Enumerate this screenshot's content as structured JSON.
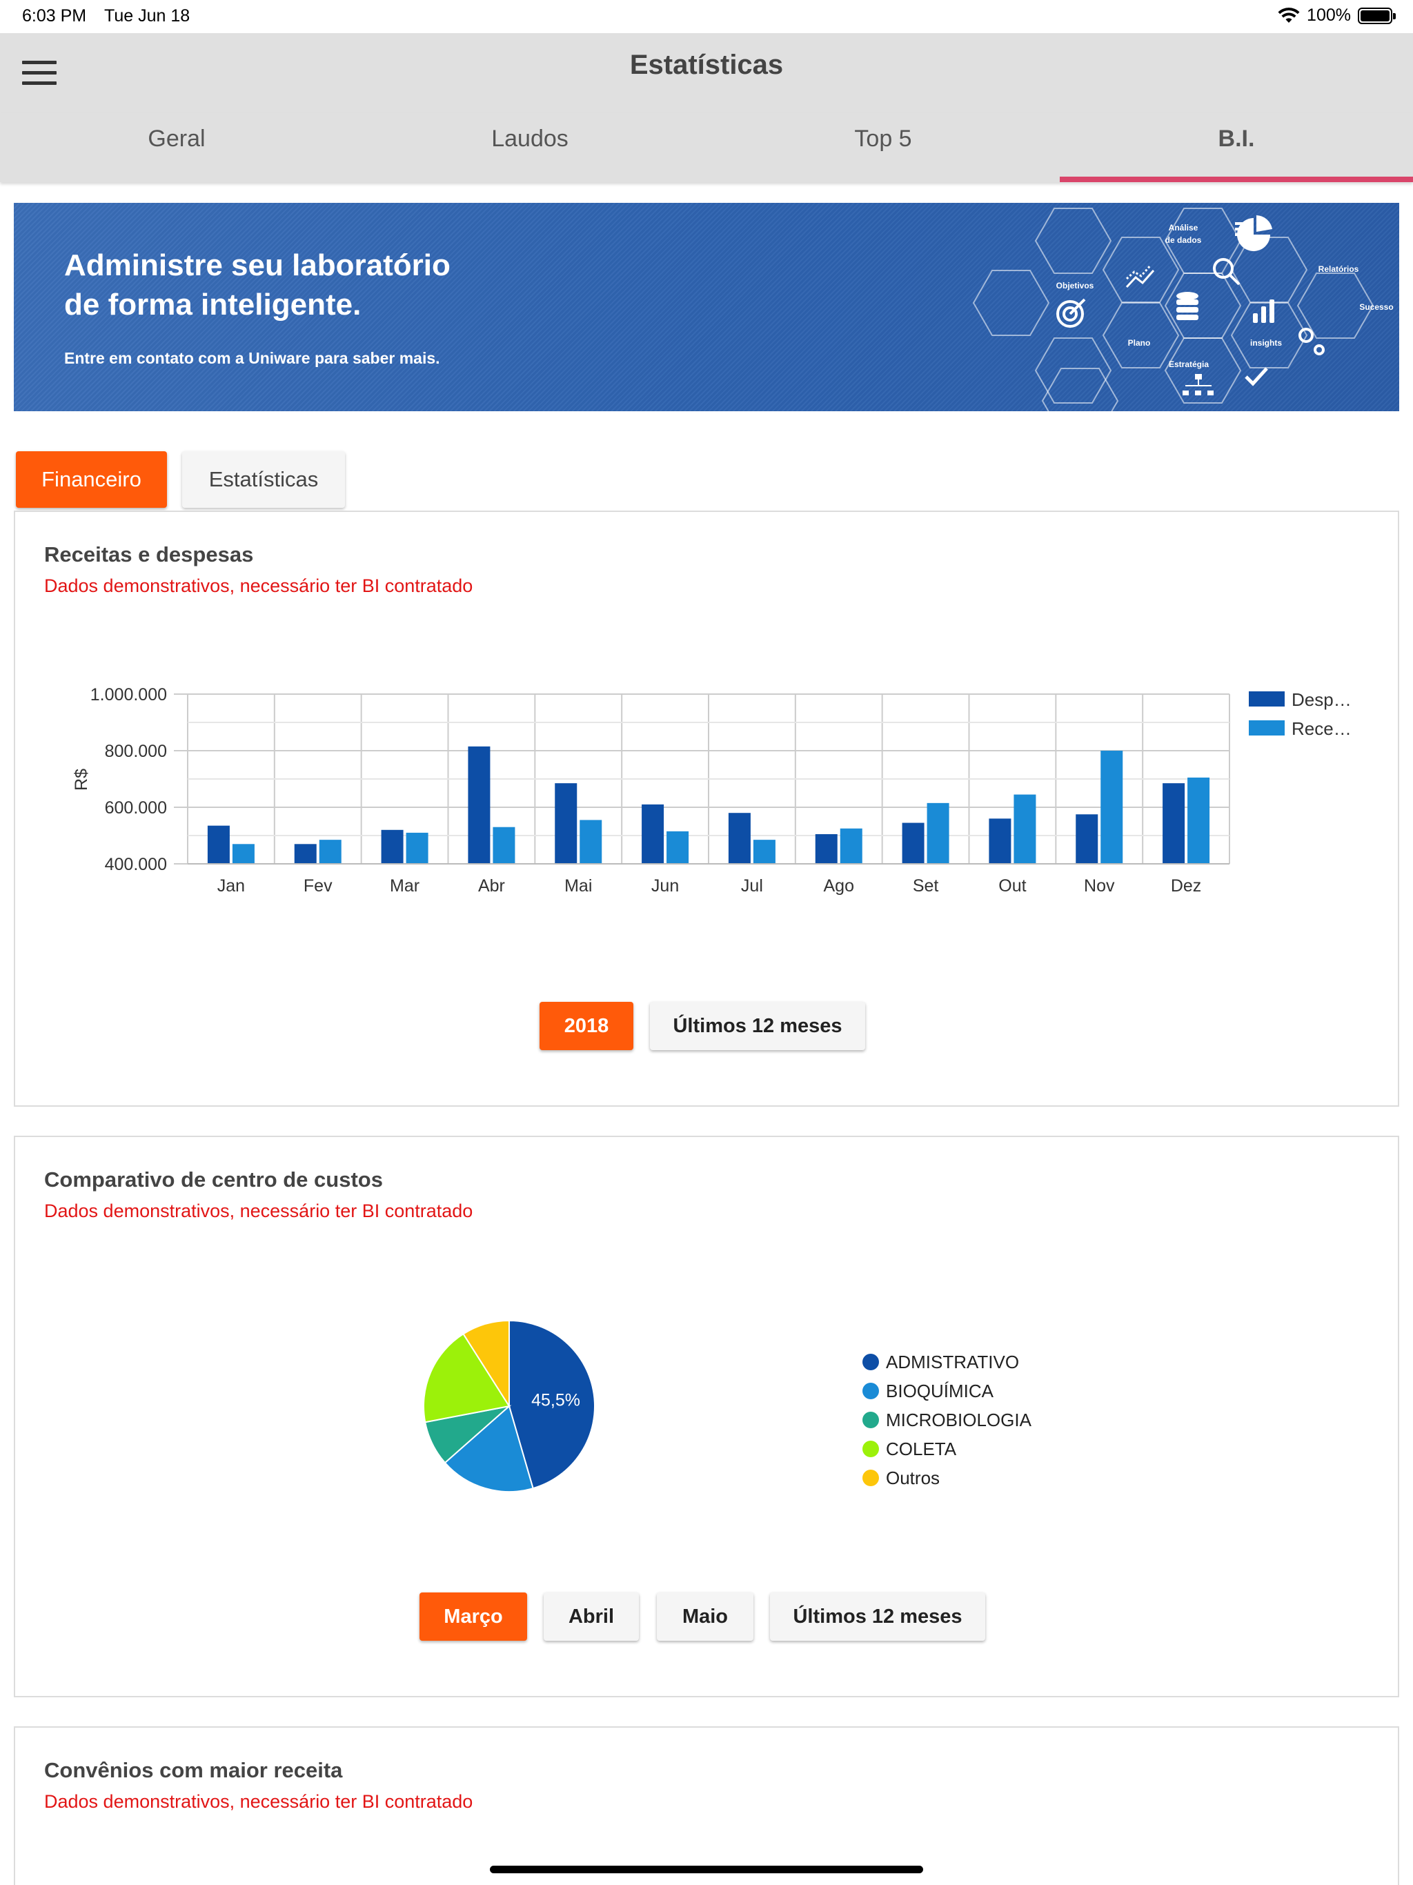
{
  "status_bar": {
    "time": "6:03 PM",
    "date": "Tue Jun 18",
    "battery": "100%"
  },
  "navbar": {
    "title": "Estatísticas"
  },
  "tabs": [
    {
      "label": "Geral",
      "active": false
    },
    {
      "label": "Laudos",
      "active": false
    },
    {
      "label": "Top 5",
      "active": false
    },
    {
      "label": "B.I.",
      "active": true
    }
  ],
  "banner": {
    "title_line1": "Administre seu laboratório",
    "title_line2": "de forma inteligente.",
    "subtitle": "Entre em contato com a Uniware para saber mais.",
    "hex_labels": {
      "analise_1": "Análise",
      "analise_2": "de dados",
      "objetivos": "Objetivos",
      "relatorios": "Relatórios",
      "sucesso": "Sucesso",
      "plano": "Plano",
      "insights": "insights",
      "estrategia": "Estratégia"
    }
  },
  "segments": {
    "financeiro": "Financeiro",
    "estatisticas": "Estatísticas",
    "selected": "Financeiro"
  },
  "revenue_card": {
    "title": "Receitas e despesas",
    "subtitle": "Dados demonstrativos, necessário ter BI contratado",
    "buttons": {
      "year": "2018",
      "last12": "Últimos 12 meses",
      "selected": "2018"
    }
  },
  "cost_card": {
    "title": "Comparativo de centro de custos",
    "subtitle": "Dados demonstrativos, necessário ter BI contratado",
    "slice_label": "45,5%",
    "buttons": {
      "marco": "Março",
      "abril": "Abril",
      "maio": "Maio",
      "last12": "Últimos 12 meses",
      "selected": "Março"
    }
  },
  "convenios_card": {
    "title": "Convênios com maior receita",
    "subtitle": "Dados demonstrativos, necessário ter BI contratado"
  },
  "colors": {
    "accent": "#ff5a0a",
    "tab_indicator": "#d9456a",
    "warning_text": "#e21515"
  },
  "chart_data": [
    {
      "type": "bar",
      "title": "",
      "ylabel": "R$",
      "ylim": [
        400000,
        1000000
      ],
      "yticks": [
        "400.000",
        "600.000",
        "800.000",
        "1.000.000"
      ],
      "categories": [
        "Jan",
        "Fev",
        "Mar",
        "Abr",
        "Mai",
        "Jun",
        "Jul",
        "Ago",
        "Set",
        "Out",
        "Nov",
        "Dez"
      ],
      "series": [
        {
          "name": "Desp…",
          "color": "#0d4ea6",
          "values": [
            535000,
            470000,
            520000,
            815000,
            685000,
            610000,
            580000,
            505000,
            545000,
            560000,
            575000,
            685000
          ]
        },
        {
          "name": "Rece…",
          "color": "#1a8bd6",
          "values": [
            470000,
            485000,
            510000,
            530000,
            555000,
            515000,
            485000,
            525000,
            615000,
            645000,
            800000,
            705000
          ]
        }
      ],
      "grid": true,
      "legend": "right"
    },
    {
      "type": "pie",
      "title": "",
      "slices": [
        {
          "name": "ADMISTRATIVO",
          "value": 45.5,
          "color": "#0d4ea6"
        },
        {
          "name": "BIOQUÍMICA",
          "value": 18.0,
          "color": "#1a8bd6"
        },
        {
          "name": "MICROBIOLOGIA",
          "value": 8.5,
          "color": "#22a98c"
        },
        {
          "name": "COLETA",
          "value": 19.0,
          "color": "#9cf10a"
        },
        {
          "name": "Outros",
          "value": 9.0,
          "color": "#fdc60a"
        }
      ],
      "legend": "right"
    }
  ]
}
